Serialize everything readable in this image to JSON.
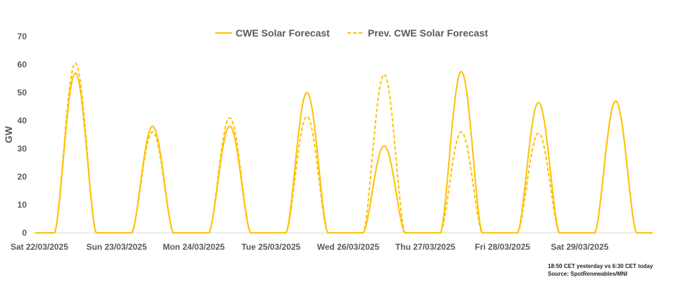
{
  "chart_data": {
    "type": "line",
    "title": "",
    "ylabel": "GW",
    "xlabel": "",
    "ylim": [
      0,
      70
    ],
    "yticks": [
      0,
      10,
      20,
      30,
      40,
      50,
      60,
      70
    ],
    "categories": [
      "Sat 22/03/2025",
      "Sun 23/03/2025",
      "Mon 24/03/2025",
      "Tue 25/03/2025",
      "Wed 26/03/2025",
      "Thu 27/03/2025",
      "Fri 28/03/2025",
      "Sat 29/03/2025"
    ],
    "legend_position": "top-center",
    "series": [
      {
        "name": "CWE Solar Forecast",
        "style": "solid",
        "color": "#FFC000",
        "daily_peaks": [
          57,
          38,
          38,
          50,
          31,
          57.5,
          46.5,
          47
        ]
      },
      {
        "name": "Prev. CWE Solar Forecast",
        "style": "dashed",
        "color": "#FFC000",
        "daily_peaks": [
          60.5,
          36,
          41,
          41.5,
          56.5,
          36,
          35.5,
          47
        ]
      }
    ]
  },
  "footnote": {
    "line1": "18:50 CET yesterday vs  6:30 CET today",
    "line2": "Source: SpotRenewables/MNI"
  }
}
